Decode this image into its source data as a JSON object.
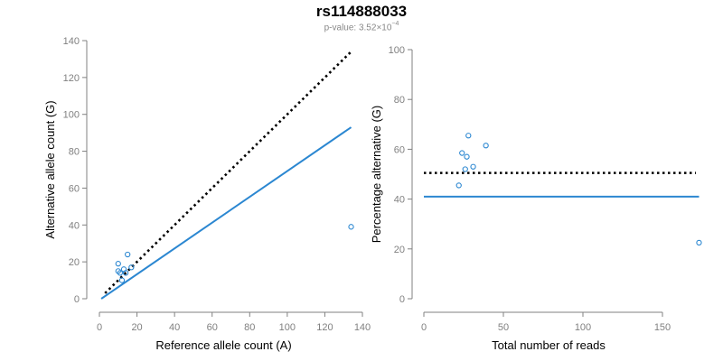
{
  "title": "rs114888033",
  "subtitle": {
    "prefix": "p-value: ",
    "mantissa": "3.52",
    "times": "×10",
    "exponent": "−4"
  },
  "colors": {
    "point": "#2b87d1",
    "fit_line": "#2b87d1",
    "reference_line": "#000000",
    "axis": "#808080"
  },
  "chart_data": [
    {
      "type": "scatter",
      "name": "allele-counts",
      "xlabel": "Reference allele count (A)",
      "ylabel": "Alternative allele count (G)",
      "xlim": [
        0,
        140
      ],
      "ylim": [
        0,
        140
      ],
      "xticks": [
        0,
        20,
        40,
        60,
        80,
        100,
        120,
        140
      ],
      "yticks": [
        0,
        20,
        40,
        60,
        80,
        100,
        120,
        140
      ],
      "points": [
        {
          "x": 10,
          "y": 19
        },
        {
          "x": 10,
          "y": 15
        },
        {
          "x": 11,
          "y": 14
        },
        {
          "x": 12,
          "y": 10
        },
        {
          "x": 13,
          "y": 16
        },
        {
          "x": 14,
          "y": 14
        },
        {
          "x": 15,
          "y": 24
        },
        {
          "x": 17,
          "y": 17
        },
        {
          "x": 134,
          "y": 39
        }
      ],
      "reference_line": {
        "style": "dotted",
        "x": [
          3,
          134
        ],
        "y": [
          3,
          134
        ]
      },
      "fit_line": {
        "style": "solid",
        "x": [
          1,
          134
        ],
        "y": [
          0,
          93
        ]
      }
    },
    {
      "type": "scatter",
      "name": "percentage-alternative",
      "xlabel": "Total number of reads",
      "ylabel": "Percentage alternative (G)",
      "xlim": [
        0,
        175
      ],
      "ylim": [
        0,
        100
      ],
      "xticks": [
        0,
        50,
        100,
        150
      ],
      "yticks": [
        0,
        20,
        40,
        60,
        80,
        100
      ],
      "points": [
        {
          "x": 22,
          "y": 45.5
        },
        {
          "x": 24,
          "y": 58.5
        },
        {
          "x": 26,
          "y": 52
        },
        {
          "x": 27,
          "y": 57
        },
        {
          "x": 28,
          "y": 65.5
        },
        {
          "x": 31,
          "y": 53
        },
        {
          "x": 39,
          "y": 61.5
        },
        {
          "x": 173,
          "y": 22.5
        }
      ],
      "reference_line": {
        "style": "dotted",
        "x": [
          0,
          171
        ],
        "y": [
          50.5,
          50.5
        ]
      },
      "fit_line": {
        "style": "solid",
        "x": [
          0,
          173
        ],
        "y": [
          41,
          41
        ]
      }
    }
  ]
}
